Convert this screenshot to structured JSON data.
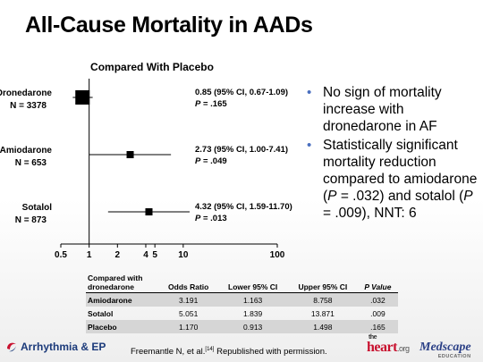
{
  "slide": {
    "title": "All-Cause Mortality in AADs"
  },
  "chart_data": {
    "type": "forest",
    "title": "Compared With Placebo",
    "x_scale": "log",
    "xlim": [
      0.5,
      100
    ],
    "x_ticks": [
      {
        "value": 0.5,
        "label": "0.5"
      },
      {
        "value": 1,
        "label": "1"
      },
      {
        "value": 2,
        "label": "2"
      },
      {
        "value": 4,
        "label": "4"
      },
      {
        "value": 5,
        "label": "5"
      },
      {
        "value": 10,
        "label": "10"
      },
      {
        "value": 100,
        "label": "100"
      }
    ],
    "reference_line": 1,
    "studies": [
      {
        "name": "Dronedarone",
        "n_label": "N = 3378",
        "or": 0.85,
        "ci": [
          0.67,
          1.09
        ],
        "ci_label": "0.85 (95% CI, 0.67-1.09)",
        "p_label": "P",
        "p_value": " = .165",
        "marker": "large"
      },
      {
        "name": "Amiodarone",
        "n_label": "N = 653",
        "or": 2.73,
        "ci": [
          1.0,
          7.41
        ],
        "ci_label": "2.73 (95% CI, 1.00-7.41)",
        "p_label": "P",
        "p_value": " = .049",
        "marker": "small"
      },
      {
        "name": "Sotalol",
        "n_label": "N = 873",
        "or": 4.32,
        "ci": [
          1.59,
          11.7
        ],
        "ci_label": "4.32 (95% CI, 1.59-11.70)",
        "p_label": "P",
        "p_value": " = .013",
        "marker": "small"
      }
    ]
  },
  "bullets": [
    {
      "parts": [
        {
          "text": "No sign of mortality increase with dronedarone in AF",
          "italic": false
        }
      ]
    },
    {
      "parts": [
        {
          "text": "Statistically significant mortality reduction compared to amiodarone (",
          "italic": false
        },
        {
          "text": "P",
          "italic": true
        },
        {
          "text": " = .032) and sotalol (",
          "italic": false
        },
        {
          "text": "P",
          "italic": true
        },
        {
          "text": " = .009), NNT: 6",
          "italic": false
        }
      ]
    }
  ],
  "table": {
    "headers": [
      "Compared with dronedarone",
      "Odds Ratio",
      "Lower 95% CI",
      "Upper 95% CI",
      "P Value"
    ],
    "rows": [
      [
        "Amiodarone",
        "3.191",
        "1.163",
        "8.758",
        ".032"
      ],
      [
        "Sotalol",
        "5.051",
        "1.839",
        "13.871",
        ".009"
      ],
      [
        "Placebo",
        "1.170",
        "0.913",
        "1.498",
        ".165"
      ]
    ]
  },
  "footer": {
    "left_logo": "Arrhythmia & EP",
    "citation_pre": "Freemantle N, et al.",
    "citation_ref": "[14]",
    "citation_post": " Republished with permission.",
    "logo_heart_pre": "the",
    "logo_heart": "heart",
    "logo_heart_org": ".org",
    "logo_medscape": "Medscape",
    "logo_medscape_sub": "EDUCATION"
  },
  "colors": {
    "bullet": "#4a6fbf",
    "marker": "#000000",
    "table_shade": "#d6d6d6"
  }
}
